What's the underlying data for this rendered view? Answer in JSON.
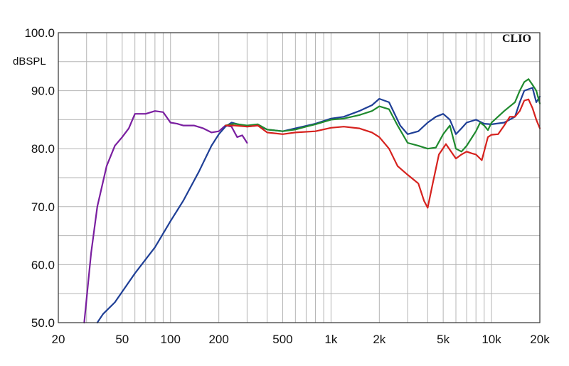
{
  "chart_data": {
    "type": "line",
    "title": "",
    "brand": "CLIO",
    "xlabel": "",
    "ylabel": "dBSPL",
    "x_scale": "log",
    "xlim": [
      20,
      20000
    ],
    "ylim": [
      50,
      100
    ],
    "grid": true,
    "x_ticks": [
      {
        "value": 20,
        "label": "20"
      },
      {
        "value": 50,
        "label": "50"
      },
      {
        "value": 100,
        "label": "100"
      },
      {
        "value": 200,
        "label": "200"
      },
      {
        "value": 500,
        "label": "500"
      },
      {
        "value": 1000,
        "label": "1k"
      },
      {
        "value": 2000,
        "label": "2k"
      },
      {
        "value": 5000,
        "label": "5k"
      },
      {
        "value": 10000,
        "label": "10k"
      },
      {
        "value": 20000,
        "label": "20k"
      }
    ],
    "y_ticks": [
      {
        "value": 50,
        "label": "50.0"
      },
      {
        "value": 60,
        "label": "60.0"
      },
      {
        "value": 70,
        "label": "70.0"
      },
      {
        "value": 80,
        "label": "80.0"
      },
      {
        "value": 90,
        "label": "90.0"
      },
      {
        "value": 100,
        "label": "100.0"
      }
    ],
    "series": [
      {
        "color": "#7a1fa0",
        "points": [
          [
            29,
            50
          ],
          [
            32,
            62
          ],
          [
            35,
            70
          ],
          [
            40,
            77
          ],
          [
            45,
            80.5
          ],
          [
            50,
            82
          ],
          [
            55,
            83.5
          ],
          [
            60,
            86
          ],
          [
            70,
            86
          ],
          [
            80,
            86.5
          ],
          [
            90,
            86.3
          ],
          [
            100,
            84.5
          ],
          [
            110,
            84.3
          ],
          [
            120,
            84
          ],
          [
            140,
            84
          ],
          [
            160,
            83.5
          ],
          [
            180,
            82.8
          ],
          [
            200,
            83
          ],
          [
            220,
            84
          ],
          [
            240,
            83.8
          ],
          [
            260,
            82
          ],
          [
            280,
            82.3
          ],
          [
            300,
            81
          ]
        ]
      },
      {
        "color": "#1f3f96",
        "points": [
          [
            35,
            50
          ],
          [
            38,
            51.5
          ],
          [
            45,
            53.5
          ],
          [
            60,
            58.5
          ],
          [
            80,
            63
          ],
          [
            100,
            67.5
          ],
          [
            120,
            71
          ],
          [
            150,
            76
          ],
          [
            180,
            80.5
          ],
          [
            200,
            82.5
          ],
          [
            220,
            83.8
          ],
          [
            240,
            84.5
          ],
          [
            300,
            83.8
          ],
          [
            350,
            84
          ],
          [
            400,
            83.3
          ],
          [
            500,
            83
          ],
          [
            600,
            83.5
          ],
          [
            800,
            84.3
          ],
          [
            1000,
            85.2
          ],
          [
            1200,
            85.5
          ],
          [
            1500,
            86.5
          ],
          [
            1800,
            87.5
          ],
          [
            2000,
            88.6
          ],
          [
            2300,
            88
          ],
          [
            2700,
            84
          ],
          [
            3000,
            82.5
          ],
          [
            3500,
            83
          ],
          [
            4000,
            84.5
          ],
          [
            4500,
            85.5
          ],
          [
            5000,
            86
          ],
          [
            5500,
            85
          ],
          [
            6000,
            82.5
          ],
          [
            6500,
            83.5
          ],
          [
            7000,
            84.5
          ],
          [
            8000,
            85
          ],
          [
            9000,
            84.3
          ],
          [
            10000,
            84.2
          ],
          [
            12000,
            84.5
          ],
          [
            14000,
            85.5
          ],
          [
            15000,
            88
          ],
          [
            16000,
            90
          ],
          [
            18000,
            90.5
          ],
          [
            19000,
            88
          ],
          [
            20000,
            89
          ]
        ]
      },
      {
        "color": "#1f8a2e",
        "points": [
          [
            220,
            84
          ],
          [
            250,
            84.3
          ],
          [
            300,
            84
          ],
          [
            350,
            84.2
          ],
          [
            400,
            83.3
          ],
          [
            500,
            83
          ],
          [
            600,
            83.3
          ],
          [
            700,
            83.8
          ],
          [
            800,
            84.2
          ],
          [
            1000,
            85
          ],
          [
            1200,
            85.2
          ],
          [
            1500,
            85.8
          ],
          [
            1800,
            86.5
          ],
          [
            2000,
            87.3
          ],
          [
            2300,
            86.8
          ],
          [
            2600,
            84
          ],
          [
            3000,
            81
          ],
          [
            3500,
            80.5
          ],
          [
            4000,
            80
          ],
          [
            4500,
            80.2
          ],
          [
            5000,
            82.5
          ],
          [
            5500,
            84
          ],
          [
            6000,
            80
          ],
          [
            6500,
            79.5
          ],
          [
            7000,
            80.5
          ],
          [
            8000,
            83
          ],
          [
            8500,
            84.5
          ],
          [
            9000,
            84
          ],
          [
            9500,
            83.2
          ],
          [
            10000,
            84.5
          ],
          [
            12000,
            86.5
          ],
          [
            14000,
            88
          ],
          [
            15000,
            90
          ],
          [
            16000,
            91.5
          ],
          [
            17000,
            92
          ],
          [
            18000,
            91
          ],
          [
            19000,
            90
          ],
          [
            20000,
            87.8
          ]
        ]
      },
      {
        "color": "#d6221e",
        "points": [
          [
            220,
            84
          ],
          [
            250,
            84
          ],
          [
            300,
            83.8
          ],
          [
            350,
            84
          ],
          [
            400,
            82.8
          ],
          [
            500,
            82.5
          ],
          [
            600,
            82.8
          ],
          [
            800,
            83
          ],
          [
            1000,
            83.6
          ],
          [
            1200,
            83.8
          ],
          [
            1500,
            83.5
          ],
          [
            1800,
            82.8
          ],
          [
            2000,
            82
          ],
          [
            2300,
            80
          ],
          [
            2600,
            77
          ],
          [
            3000,
            75.5
          ],
          [
            3500,
            74
          ],
          [
            3800,
            71
          ],
          [
            4000,
            69.8
          ],
          [
            4300,
            74
          ],
          [
            4700,
            79
          ],
          [
            5200,
            80.8
          ],
          [
            5600,
            79.5
          ],
          [
            6000,
            78.3
          ],
          [
            6500,
            79
          ],
          [
            7000,
            79.5
          ],
          [
            7500,
            79.2
          ],
          [
            8000,
            79
          ],
          [
            8700,
            78
          ],
          [
            9500,
            82
          ],
          [
            10000,
            82.4
          ],
          [
            11000,
            82.5
          ],
          [
            12000,
            84
          ],
          [
            13000,
            85.5
          ],
          [
            14000,
            85.5
          ],
          [
            15000,
            86.5
          ],
          [
            16000,
            88.3
          ],
          [
            17000,
            88.5
          ],
          [
            18000,
            87
          ],
          [
            19000,
            85
          ],
          [
            20000,
            83.5
          ]
        ]
      }
    ]
  }
}
